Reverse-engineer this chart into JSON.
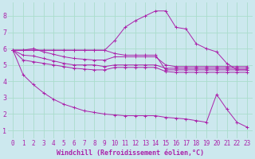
{
  "xlabel": "Windchill (Refroidissement éolien,°C)",
  "background_color": "#cce8ee",
  "grid_color": "#aaddcc",
  "line_color": "#aa22aa",
  "marker": "+",
  "xlim": [
    -0.5,
    23.5
  ],
  "ylim": [
    0.5,
    8.8
  ],
  "xticks": [
    0,
    1,
    2,
    3,
    4,
    5,
    6,
    7,
    8,
    9,
    10,
    11,
    12,
    13,
    14,
    15,
    16,
    17,
    18,
    19,
    20,
    21,
    22,
    23
  ],
  "yticks": [
    1,
    2,
    3,
    4,
    5,
    6,
    7,
    8
  ],
  "series": [
    [
      5.9,
      5.9,
      5.9,
      5.9,
      5.9,
      5.9,
      5.9,
      5.9,
      5.9,
      5.9,
      5.7,
      5.6,
      5.6,
      5.6,
      5.6,
      4.7,
      4.7,
      4.7,
      4.7,
      4.7,
      4.7,
      4.7,
      4.7,
      4.7
    ],
    [
      5.9,
      5.9,
      6.0,
      5.8,
      5.65,
      5.5,
      5.4,
      5.35,
      5.3,
      5.3,
      5.5,
      5.5,
      5.5,
      5.5,
      5.5,
      5.0,
      4.9,
      4.9,
      4.9,
      4.9,
      4.9,
      4.9,
      4.9,
      4.9
    ],
    [
      5.9,
      5.6,
      5.55,
      5.4,
      5.25,
      5.1,
      5.0,
      5.0,
      5.0,
      4.9,
      5.0,
      5.0,
      5.0,
      5.0,
      5.0,
      4.8,
      4.8,
      4.8,
      4.8,
      4.8,
      4.8,
      4.8,
      4.8,
      4.8
    ],
    [
      5.9,
      5.3,
      5.2,
      5.1,
      5.0,
      4.9,
      4.8,
      4.75,
      4.7,
      4.7,
      4.85,
      4.85,
      4.85,
      4.85,
      4.85,
      4.6,
      4.55,
      4.55,
      4.55,
      4.55,
      4.55,
      4.55,
      4.55,
      4.55
    ],
    [
      5.9,
      4.4,
      3.8,
      3.3,
      2.9,
      2.6,
      2.4,
      2.2,
      2.1,
      2.0,
      1.95,
      1.9,
      1.9,
      1.9,
      1.9,
      1.8,
      1.75,
      1.7,
      1.6,
      1.5,
      3.2,
      2.3,
      1.5,
      1.2
    ],
    [
      5.9,
      5.9,
      5.9,
      5.9,
      5.9,
      5.9,
      5.9,
      5.9,
      5.9,
      5.9,
      6.5,
      7.3,
      7.7,
      8.0,
      8.3,
      8.3,
      7.3,
      7.2,
      6.3,
      6.0,
      5.8,
      5.1,
      4.7,
      4.7
    ]
  ],
  "xlabel_fontsize": 6,
  "tick_fontsize": 5.5,
  "linewidth": 0.7,
  "markersize": 2.5,
  "markeredgewidth": 0.7
}
